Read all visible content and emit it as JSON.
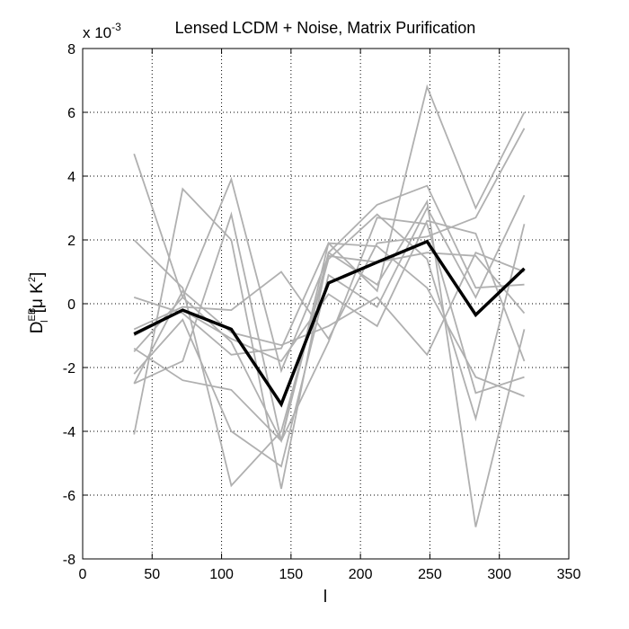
{
  "chart_data": {
    "type": "line",
    "title": "Lensed LCDM + Noise, Matrix Purification",
    "xlabel": "l",
    "ylabel": "D",
    "ylabel_sub": "l",
    "ylabel_sup": "EB",
    "ylabel_unit": "[μ K",
    "ylabel_unit_sup": "2",
    "ylabel_close": "]",
    "y_multiplier": "x 10",
    "y_multiplier_exp": "-3",
    "xlim": [
      0,
      350
    ],
    "ylim": [
      -8,
      8
    ],
    "grid": true,
    "x_ticks": [
      0,
      50,
      100,
      150,
      200,
      250,
      300,
      350
    ],
    "y_ticks": [
      -8,
      -6,
      -4,
      -2,
      0,
      2,
      4,
      6,
      8
    ],
    "x_tick_labels": [
      "0",
      "50",
      "100",
      "150",
      "200",
      "250",
      "300",
      "350"
    ],
    "y_tick_labels": [
      "-8",
      "-6",
      "-4",
      "-2",
      "0",
      "2",
      "4",
      "6",
      "8"
    ],
    "x": [
      37,
      72,
      107,
      143,
      177,
      212,
      248,
      283,
      318
    ],
    "series": [
      {
        "color": "#b0b0b0",
        "values": [
          4.7,
          0.2,
          -1.2,
          -4.3,
          1.6,
          0.6,
          3.2,
          -7.0,
          -0.8
        ]
      },
      {
        "color": "#b0b0b0",
        "values": [
          2.0,
          0.5,
          -5.7,
          -4.0,
          1.4,
          2.8,
          1.4,
          -3.6,
          2.5
        ]
      },
      {
        "color": "#b0b0b0",
        "values": [
          -4.1,
          3.6,
          2.0,
          -5.8,
          1.6,
          3.1,
          3.7,
          0.5,
          0.6
        ]
      },
      {
        "color": "#b0b0b0",
        "values": [
          0.2,
          -0.3,
          -1.6,
          -1.4,
          1.9,
          0.4,
          6.8,
          3.0,
          6.0
        ]
      },
      {
        "color": "#b0b0b0",
        "values": [
          -1.4,
          -2.4,
          -2.7,
          -4.3,
          -1.2,
          2.7,
          2.5,
          -2.8,
          -2.3
        ]
      },
      {
        "color": "#b0b0b0",
        "values": [
          -2.5,
          -1.8,
          2.8,
          -4.3,
          1.9,
          1.8,
          0.5,
          -2.3,
          -2.9
        ]
      },
      {
        "color": "#b0b0b0",
        "values": [
          -0.8,
          -0.1,
          -0.2,
          1.0,
          -1.1,
          1.9,
          2.1,
          2.7,
          5.5
        ]
      },
      {
        "color": "#b0b0b0",
        "values": [
          -1.5,
          0.2,
          3.9,
          -2.1,
          1.5,
          1.3,
          1.6,
          1.5,
          -0.3
        ]
      },
      {
        "color": "#b0b0b0",
        "values": [
          -2.2,
          -0.5,
          -4.0,
          -5.1,
          0.9,
          -0.1,
          3.0,
          0.2,
          3.4
        ]
      },
      {
        "color": "#b0b0b0",
        "values": [
          -2.5,
          0.4,
          -0.9,
          -1.3,
          -0.7,
          0.2,
          -1.6,
          1.6,
          1.0
        ]
      },
      {
        "color": "#b0b0b0",
        "values": [
          -1.0,
          -0.2,
          -1.1,
          -1.8,
          0.3,
          -0.7,
          2.6,
          2.2,
          -1.8
        ]
      },
      {
        "color": "#000000",
        "mean": true,
        "values": [
          -0.95,
          -0.2,
          -0.8,
          -3.15,
          0.65,
          1.3,
          1.95,
          -0.35,
          1.1
        ]
      }
    ]
  }
}
